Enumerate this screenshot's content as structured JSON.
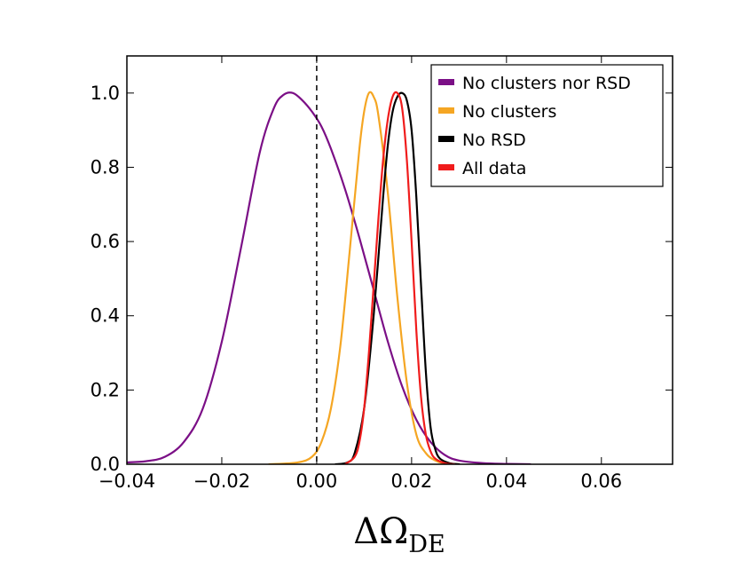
{
  "chart_data": {
    "type": "line",
    "title": "",
    "xlabel_main": "ΔΩ",
    "xlabel_sub": "DE",
    "ylabel": "",
    "xlim": [
      -0.04,
      0.075
    ],
    "ylim": [
      0,
      1.1
    ],
    "x_ticks": [
      -0.04,
      -0.02,
      0.0,
      0.02,
      0.04,
      0.06
    ],
    "x_tick_labels": [
      "−0.04",
      "−0.02",
      "0.00",
      "0.02",
      "0.04",
      "0.06"
    ],
    "y_ticks": [
      0.0,
      0.2,
      0.4,
      0.6,
      0.8,
      1.0
    ],
    "y_tick_labels": [
      "0.0",
      "0.2",
      "0.4",
      "0.6",
      "0.8",
      "1.0"
    ],
    "reference_line": {
      "x": 0.0,
      "style": "dashed",
      "color": "#000000"
    },
    "legend_position": "top-right",
    "series": [
      {
        "name": "No clusters nor RSD",
        "color": "#7b0f86",
        "x": [
          -0.04,
          -0.036,
          -0.032,
          -0.028,
          -0.024,
          -0.02,
          -0.016,
          -0.012,
          -0.009,
          -0.007,
          -0.005,
          -0.003,
          -0.001,
          0.001,
          0.003,
          0.006,
          0.009,
          0.012,
          0.015,
          0.018,
          0.021,
          0.024,
          0.027,
          0.03,
          0.035,
          0.04,
          0.045
        ],
        "y": [
          0.005,
          0.008,
          0.02,
          0.06,
          0.15,
          0.33,
          0.58,
          0.84,
          0.96,
          0.995,
          1.0,
          0.98,
          0.95,
          0.91,
          0.85,
          0.74,
          0.61,
          0.47,
          0.33,
          0.21,
          0.12,
          0.06,
          0.025,
          0.01,
          0.003,
          0.001,
          0.0
        ]
      },
      {
        "name": "No clusters",
        "color": "#f5a623",
        "x": [
          -0.01,
          -0.004,
          -0.001,
          0.001,
          0.003,
          0.005,
          0.007,
          0.009,
          0.01,
          0.011,
          0.012,
          0.013,
          0.015,
          0.017,
          0.019,
          0.021,
          0.023,
          0.025,
          0.027,
          0.03
        ],
        "y": [
          0.0,
          0.005,
          0.02,
          0.06,
          0.15,
          0.32,
          0.58,
          0.85,
          0.95,
          1.0,
          0.99,
          0.94,
          0.73,
          0.45,
          0.22,
          0.08,
          0.03,
          0.01,
          0.002,
          0.0
        ]
      },
      {
        "name": "No RSD",
        "color": "#000000",
        "x": [
          0.004,
          0.0065,
          0.008,
          0.01,
          0.012,
          0.014,
          0.015,
          0.016,
          0.017,
          0.018,
          0.019,
          0.02,
          0.021,
          0.022,
          0.023,
          0.024,
          0.025,
          0.026,
          0.028,
          0.03
        ],
        "y": [
          0.0,
          0.005,
          0.03,
          0.15,
          0.4,
          0.72,
          0.86,
          0.95,
          0.99,
          1.0,
          0.98,
          0.9,
          0.72,
          0.48,
          0.25,
          0.1,
          0.04,
          0.015,
          0.003,
          0.0
        ]
      },
      {
        "name": "All data",
        "color": "#f01c1c",
        "x": [
          0.006,
          0.008,
          0.009,
          0.01,
          0.011,
          0.012,
          0.013,
          0.014,
          0.015,
          0.016,
          0.017,
          0.018,
          0.019,
          0.02,
          0.021,
          0.022,
          0.023,
          0.024,
          0.025,
          0.027,
          0.029
        ],
        "y": [
          0.0,
          0.02,
          0.06,
          0.15,
          0.3,
          0.48,
          0.66,
          0.82,
          0.93,
          0.99,
          1.0,
          0.96,
          0.82,
          0.6,
          0.36,
          0.18,
          0.08,
          0.035,
          0.015,
          0.003,
          0.0
        ]
      }
    ]
  }
}
